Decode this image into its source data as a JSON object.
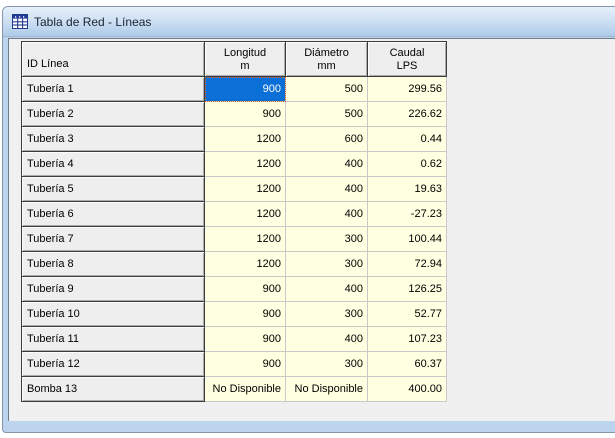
{
  "window": {
    "title": "Tabla de Red - Líneas",
    "icon": "table-grid-icon"
  },
  "table": {
    "columns": [
      {
        "key": "id",
        "label": "ID Línea",
        "unit": ""
      },
      {
        "key": "longitud",
        "label": "Longitud",
        "unit": "m"
      },
      {
        "key": "diametro",
        "label": "Diámetro",
        "unit": "mm"
      },
      {
        "key": "caudal",
        "label": "Caudal",
        "unit": "LPS"
      }
    ],
    "rows": [
      {
        "id": "Tubería 1",
        "longitud": "900",
        "diametro": "500",
        "caudal": "299.56"
      },
      {
        "id": "Tubería 2",
        "longitud": "900",
        "diametro": "500",
        "caudal": "226.62"
      },
      {
        "id": "Tubería 3",
        "longitud": "1200",
        "diametro": "600",
        "caudal": "0.44"
      },
      {
        "id": "Tubería 4",
        "longitud": "1200",
        "diametro": "400",
        "caudal": "0.62"
      },
      {
        "id": "Tubería 5",
        "longitud": "1200",
        "diametro": "400",
        "caudal": "19.63"
      },
      {
        "id": "Tubería 6",
        "longitud": "1200",
        "diametro": "400",
        "caudal": "-27.23"
      },
      {
        "id": "Tubería 7",
        "longitud": "1200",
        "diametro": "300",
        "caudal": "100.44"
      },
      {
        "id": "Tubería 8",
        "longitud": "1200",
        "diametro": "300",
        "caudal": "72.94"
      },
      {
        "id": "Tubería 9",
        "longitud": "900",
        "diametro": "400",
        "caudal": "126.25"
      },
      {
        "id": "Tubería 10",
        "longitud": "900",
        "diametro": "300",
        "caudal": "52.77"
      },
      {
        "id": "Tubería 11",
        "longitud": "900",
        "diametro": "400",
        "caudal": "107.23"
      },
      {
        "id": "Tubería 12",
        "longitud": "900",
        "diametro": "300",
        "caudal": "60.37"
      },
      {
        "id": "Bomba 13",
        "longitud": "No Disponible",
        "diametro": "No Disponible",
        "caudal": "400.00"
      }
    ],
    "selection": {
      "row": 0,
      "column": "longitud",
      "value": "900"
    }
  },
  "colors": {
    "selection_blue": "#0a70d8",
    "selection_text": "#ffffff",
    "focus_dotted_orange": "#e0660a",
    "cell_yellow": "#ffffe1",
    "fixed_cell_gray": "#eeeeee",
    "client_gray": "#f0f0f0",
    "window_border_blue": "#bdd4ee",
    "titlebar_gradient_top": "#e6f0fb",
    "titlebar_gradient_bottom": "#aecbe9",
    "icon_navy": "#203a93"
  }
}
